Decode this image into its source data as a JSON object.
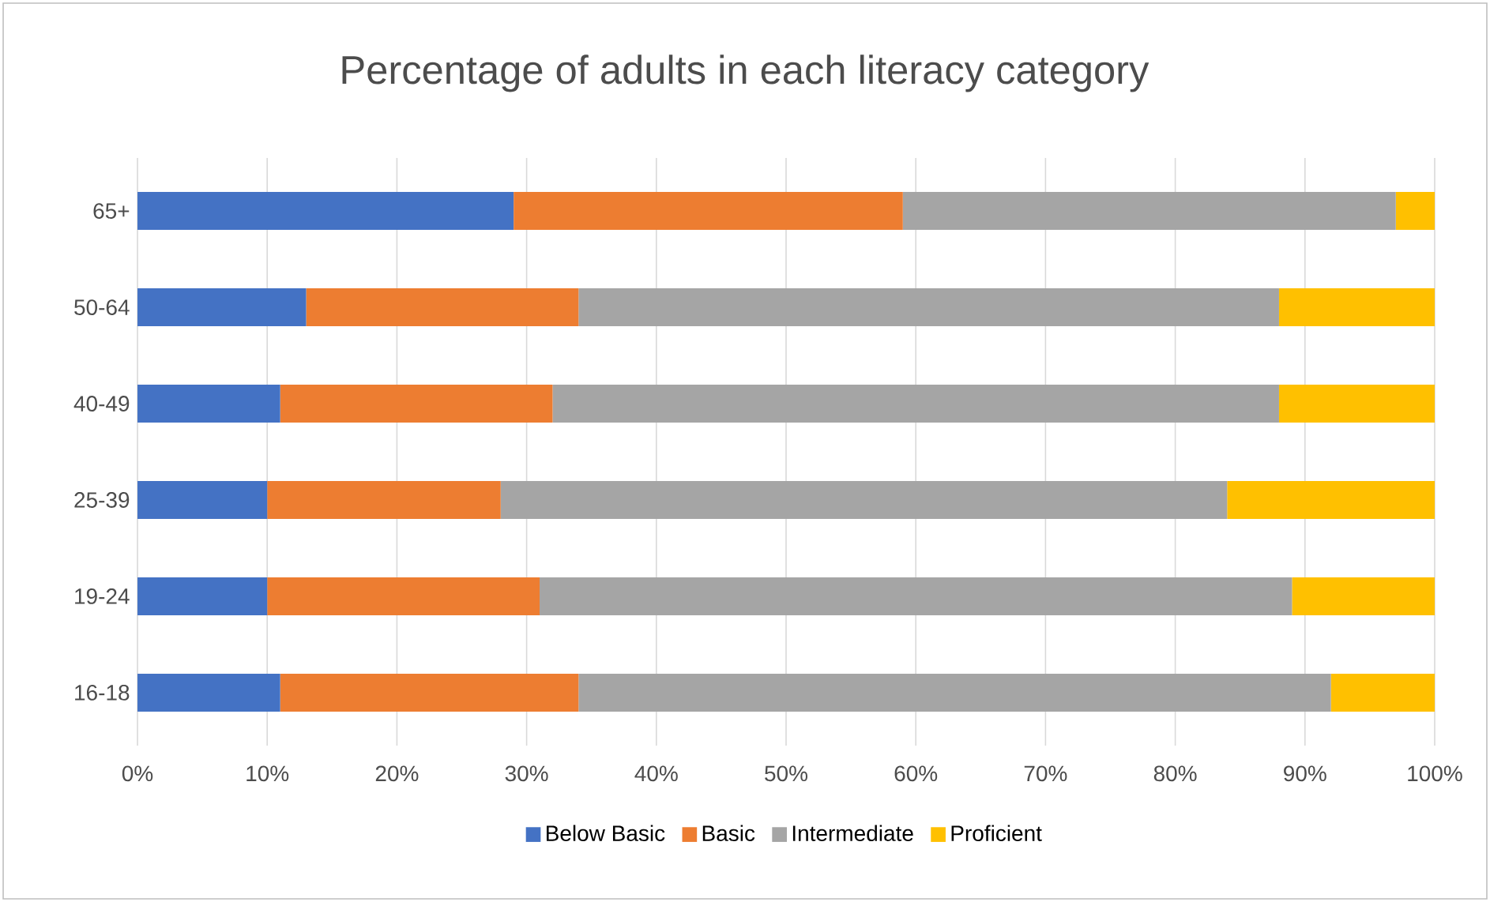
{
  "chart_data": {
    "type": "bar",
    "orientation": "horizontal",
    "stacked": true,
    "title": "Percentage of adults in each literacy category",
    "categories": [
      "65+",
      "50-64",
      "40-49",
      "25-39",
      "19-24",
      "16-18"
    ],
    "series": [
      {
        "name": "Below Basic",
        "color": "#4472c4",
        "values": [
          29,
          13,
          11,
          10,
          10,
          11
        ]
      },
      {
        "name": "Basic",
        "color": "#ed7d31",
        "values": [
          30,
          21,
          21,
          18,
          21,
          23
        ]
      },
      {
        "name": "Intermediate",
        "color": "#a5a5a5",
        "values": [
          38,
          54,
          56,
          56,
          58,
          58
        ]
      },
      {
        "name": "Proficient",
        "color": "#ffc000",
        "values": [
          3,
          12,
          12,
          16,
          11,
          8
        ]
      }
    ],
    "xlim": [
      0,
      100
    ],
    "xticks": [
      {
        "value": 0,
        "label": "0%"
      },
      {
        "value": 10,
        "label": "10%"
      },
      {
        "value": 20,
        "label": "20%"
      },
      {
        "value": 30,
        "label": "30%"
      },
      {
        "value": 40,
        "label": "40%"
      },
      {
        "value": 50,
        "label": "50%"
      },
      {
        "value": 60,
        "label": "60%"
      },
      {
        "value": 70,
        "label": "70%"
      },
      {
        "value": 80,
        "label": "80%"
      },
      {
        "value": 90,
        "label": "90%"
      },
      {
        "value": 100,
        "label": "100%"
      }
    ],
    "grid": "x",
    "legend": "bottom"
  }
}
